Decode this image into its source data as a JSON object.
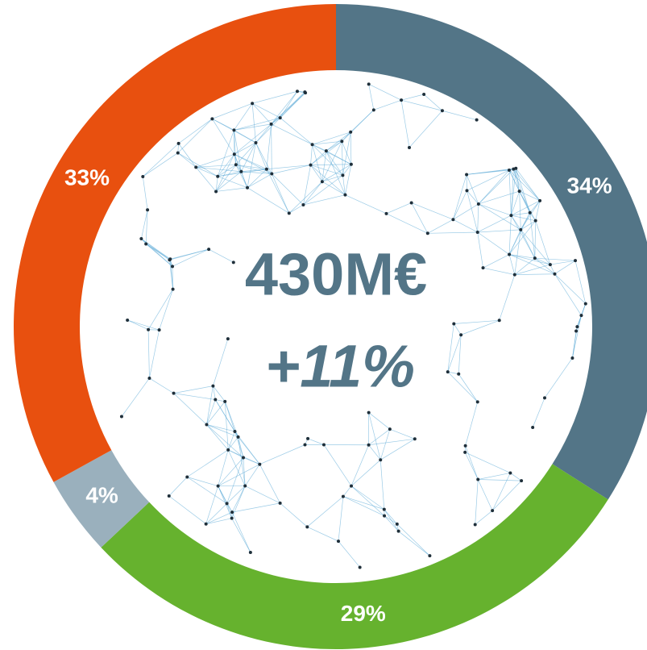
{
  "chart_data": {
    "type": "pie",
    "donut": true,
    "center_title": "430M€",
    "center_subtitle": "+11%",
    "values": [
      34,
      29,
      4,
      33
    ],
    "value_labels": [
      "34%",
      "29%",
      "4%",
      "33%"
    ],
    "colors": [
      "#537587",
      "#66b22e",
      "#9ab0bd",
      "#e8500f"
    ]
  }
}
